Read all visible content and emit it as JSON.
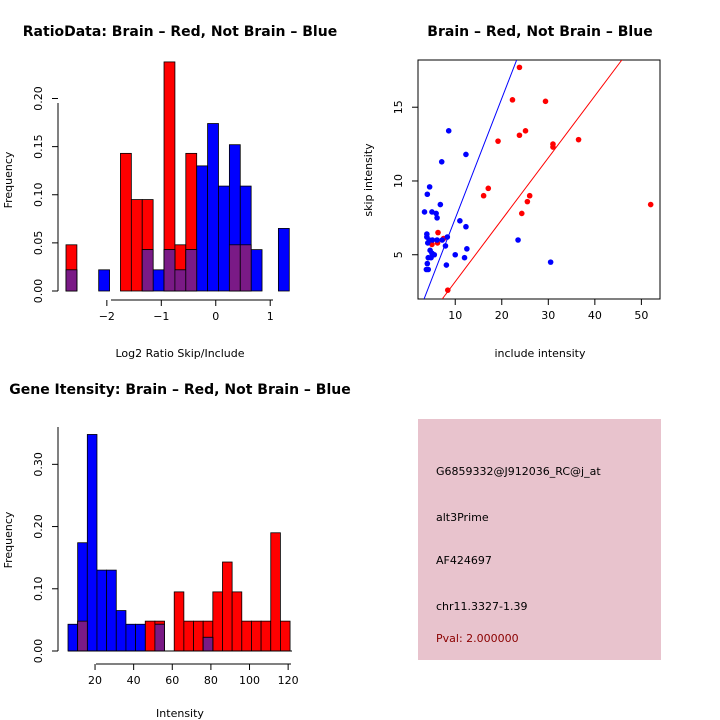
{
  "chart_data": [
    {
      "id": "ratio",
      "type": "bar",
      "title": "RatioData: Brain – Red, Not Brain – Blue",
      "xlabel": "Log2 Ratio Skip/Include",
      "ylabel": "Frequency",
      "xlim": [
        -2.75,
        1.4
      ],
      "ylim": [
        0,
        0.24
      ],
      "xticks": [
        -2,
        -1,
        0,
        1
      ],
      "xtick_labels": [
        "−2",
        "−1",
        "0",
        "1"
      ],
      "yticks": [
        0,
        0.05,
        0.1,
        0.15,
        0.2
      ],
      "ytick_labels": [
        "0.00",
        "0.05",
        "0.10",
        "0.15",
        "0.20"
      ],
      "bin_width": 0.2,
      "series": [
        {
          "name": "Brain",
          "color": "#ff0000",
          "bins": [
            [
              -2.75,
              0.048
            ],
            [
              -1.75,
              0.143
            ],
            [
              -1.55,
              0.095
            ],
            [
              -1.35,
              0.095
            ],
            [
              -0.95,
              0.238
            ],
            [
              -0.75,
              0.048
            ],
            [
              -0.55,
              0.143
            ],
            [
              0.25,
              0.048
            ],
            [
              0.45,
              0.048
            ]
          ]
        },
        {
          "name": "Not Brain",
          "color": "#0000ff",
          "bins": [
            [
              -2.75,
              0.022
            ],
            [
              -2.15,
              0.022
            ],
            [
              -1.35,
              0.043
            ],
            [
              -1.15,
              0.022
            ],
            [
              -0.95,
              0.043
            ],
            [
              -0.75,
              0.022
            ],
            [
              -0.55,
              0.043
            ],
            [
              -0.35,
              0.13
            ],
            [
              -0.15,
              0.174
            ],
            [
              0.05,
              0.109
            ],
            [
              0.25,
              0.152
            ],
            [
              0.45,
              0.109
            ],
            [
              0.65,
              0.043
            ],
            [
              1.15,
              0.065
            ]
          ]
        }
      ]
    },
    {
      "id": "scatter",
      "type": "scatter",
      "title": "Brain – Red, Not Brain – Blue",
      "xlabel": "include intensity",
      "ylabel": "skip intensity",
      "xlim": [
        2,
        54
      ],
      "ylim": [
        2,
        18.2
      ],
      "xticks": [
        10,
        20,
        30,
        40,
        50
      ],
      "xtick_labels": [
        "10",
        "20",
        "30",
        "40",
        "50"
      ],
      "yticks": [
        5,
        10,
        15
      ],
      "ytick_labels": [
        "5",
        "10",
        "15"
      ],
      "series": [
        {
          "name": "Brain",
          "color": "#ff0000",
          "points": [
            [
              23.8,
              17.7
            ],
            [
              22.3,
              15.5
            ],
            [
              29.4,
              15.4
            ],
            [
              25.1,
              13.4
            ],
            [
              23.8,
              13.1
            ],
            [
              31.0,
              12.5
            ],
            [
              31.0,
              12.3
            ],
            [
              36.5,
              12.8
            ],
            [
              19.2,
              12.7
            ],
            [
              17.1,
              9.5
            ],
            [
              16.1,
              9.0
            ],
            [
              26.0,
              9.0
            ],
            [
              25.5,
              8.6
            ],
            [
              24.3,
              7.8
            ],
            [
              52.0,
              8.4
            ],
            [
              6.3,
              6.5
            ],
            [
              7.5,
              6.1
            ],
            [
              6.2,
              5.8
            ],
            [
              5.0,
              5.7
            ],
            [
              8.4,
              2.6
            ]
          ]
        },
        {
          "name": "Not Brain",
          "color": "#0000ff",
          "points": [
            [
              8.6,
              13.4
            ],
            [
              12.3,
              11.8
            ],
            [
              7.1,
              11.3
            ],
            [
              4.5,
              9.6
            ],
            [
              4.0,
              9.1
            ],
            [
              6.8,
              8.4
            ],
            [
              3.4,
              7.9
            ],
            [
              5.0,
              7.9
            ],
            [
              5.9,
              7.8
            ],
            [
              6.1,
              7.5
            ],
            [
              11.0,
              7.3
            ],
            [
              12.3,
              6.9
            ],
            [
              3.9,
              6.4
            ],
            [
              3.9,
              6.2
            ],
            [
              4.4,
              6.0
            ],
            [
              4.1,
              5.8
            ],
            [
              5.1,
              6.0
            ],
            [
              6.1,
              6.0
            ],
            [
              7.2,
              6.0
            ],
            [
              8.3,
              6.2
            ],
            [
              7.9,
              5.6
            ],
            [
              4.6,
              5.3
            ],
            [
              5.0,
              5.1
            ],
            [
              5.5,
              5.0
            ],
            [
              4.2,
              4.8
            ],
            [
              4.0,
              4.4
            ],
            [
              3.8,
              4.0
            ],
            [
              4.2,
              4.0
            ],
            [
              4.8,
              4.8
            ],
            [
              10.0,
              5.0
            ],
            [
              12.5,
              5.4
            ],
            [
              12.0,
              4.8
            ],
            [
              8.1,
              4.3
            ],
            [
              23.5,
              6.0
            ],
            [
              30.5,
              4.5
            ]
          ]
        }
      ],
      "lines": [
        {
          "name": "blue-fit",
          "color": "#0000ff",
          "from": [
            3.3,
            2.0
          ],
          "to": [
            23.2,
            18.2
          ]
        },
        {
          "name": "red-fit",
          "color": "#ff0000",
          "from": [
            7.2,
            2.0
          ],
          "to": [
            45.8,
            18.2
          ]
        }
      ]
    },
    {
      "id": "gene",
      "type": "bar",
      "title": "Gene Itensity: Brain – Red, Not Brain – Blue",
      "xlabel": "Intensity",
      "ylabel": "Frequency",
      "xlim": [
        6,
        122
      ],
      "ylim": [
        0,
        0.36
      ],
      "xticks": [
        20,
        40,
        60,
        80,
        100,
        120
      ],
      "xtick_labels": [
        "20",
        "40",
        "60",
        "80",
        "100",
        "120"
      ],
      "yticks": [
        0,
        0.1,
        0.2,
        0.3
      ],
      "ytick_labels": [
        "0.00",
        "0.10",
        "0.20",
        "0.30"
      ],
      "bin_width": 5,
      "series": [
        {
          "name": "Brain",
          "color": "#ff0000",
          "bins": [
            [
              11,
              0.048
            ],
            [
              46,
              0.048
            ],
            [
              51,
              0.048
            ],
            [
              61,
              0.095
            ],
            [
              66,
              0.048
            ],
            [
              71,
              0.048
            ],
            [
              76,
              0.048
            ],
            [
              81,
              0.095
            ],
            [
              86,
              0.143
            ],
            [
              91,
              0.095
            ],
            [
              96,
              0.048
            ],
            [
              101,
              0.048
            ],
            [
              106,
              0.048
            ],
            [
              111,
              0.19
            ],
            [
              116,
              0.048
            ]
          ]
        },
        {
          "name": "Not Brain",
          "color": "#0000ff",
          "bins": [
            [
              6,
              0.043
            ],
            [
              11,
              0.174
            ],
            [
              16,
              0.348
            ],
            [
              21,
              0.13
            ],
            [
              26,
              0.13
            ],
            [
              31,
              0.065
            ],
            [
              36,
              0.043
            ],
            [
              41,
              0.043
            ],
            [
              51,
              0.043
            ],
            [
              76,
              0.022
            ]
          ]
        }
      ]
    }
  ],
  "info_panel": {
    "probe": "G6859332@J912036_RC@j_at",
    "event_type": "alt3Prime",
    "accession": "AF424697",
    "location": "chr11.3327-1.39",
    "pval": "Pval: 2.000000"
  },
  "colors": {
    "brain": "#ff0000",
    "not_brain": "#0000ff",
    "overlap": "#7a1a86",
    "info_bg": "#e8c3cd"
  }
}
